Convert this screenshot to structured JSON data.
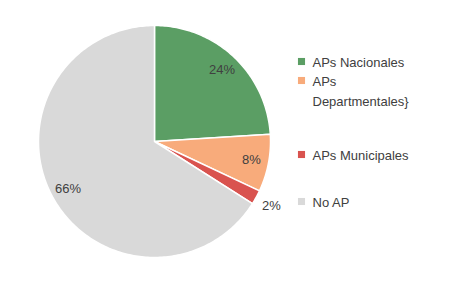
{
  "chart_data": {
    "type": "pie",
    "categories": [
      "APs Nacionales",
      "APs Departmentales}",
      "APs Municipales",
      "No AP"
    ],
    "values": [
      24,
      8,
      2,
      66
    ],
    "value_labels": [
      "24%",
      "8%",
      "2%",
      "66%"
    ],
    "colors": [
      "#5b9e64",
      "#f8ab7b",
      "#d9534f",
      "#d9d9d9"
    ],
    "data_labels": true,
    "legend": "right"
  }
}
